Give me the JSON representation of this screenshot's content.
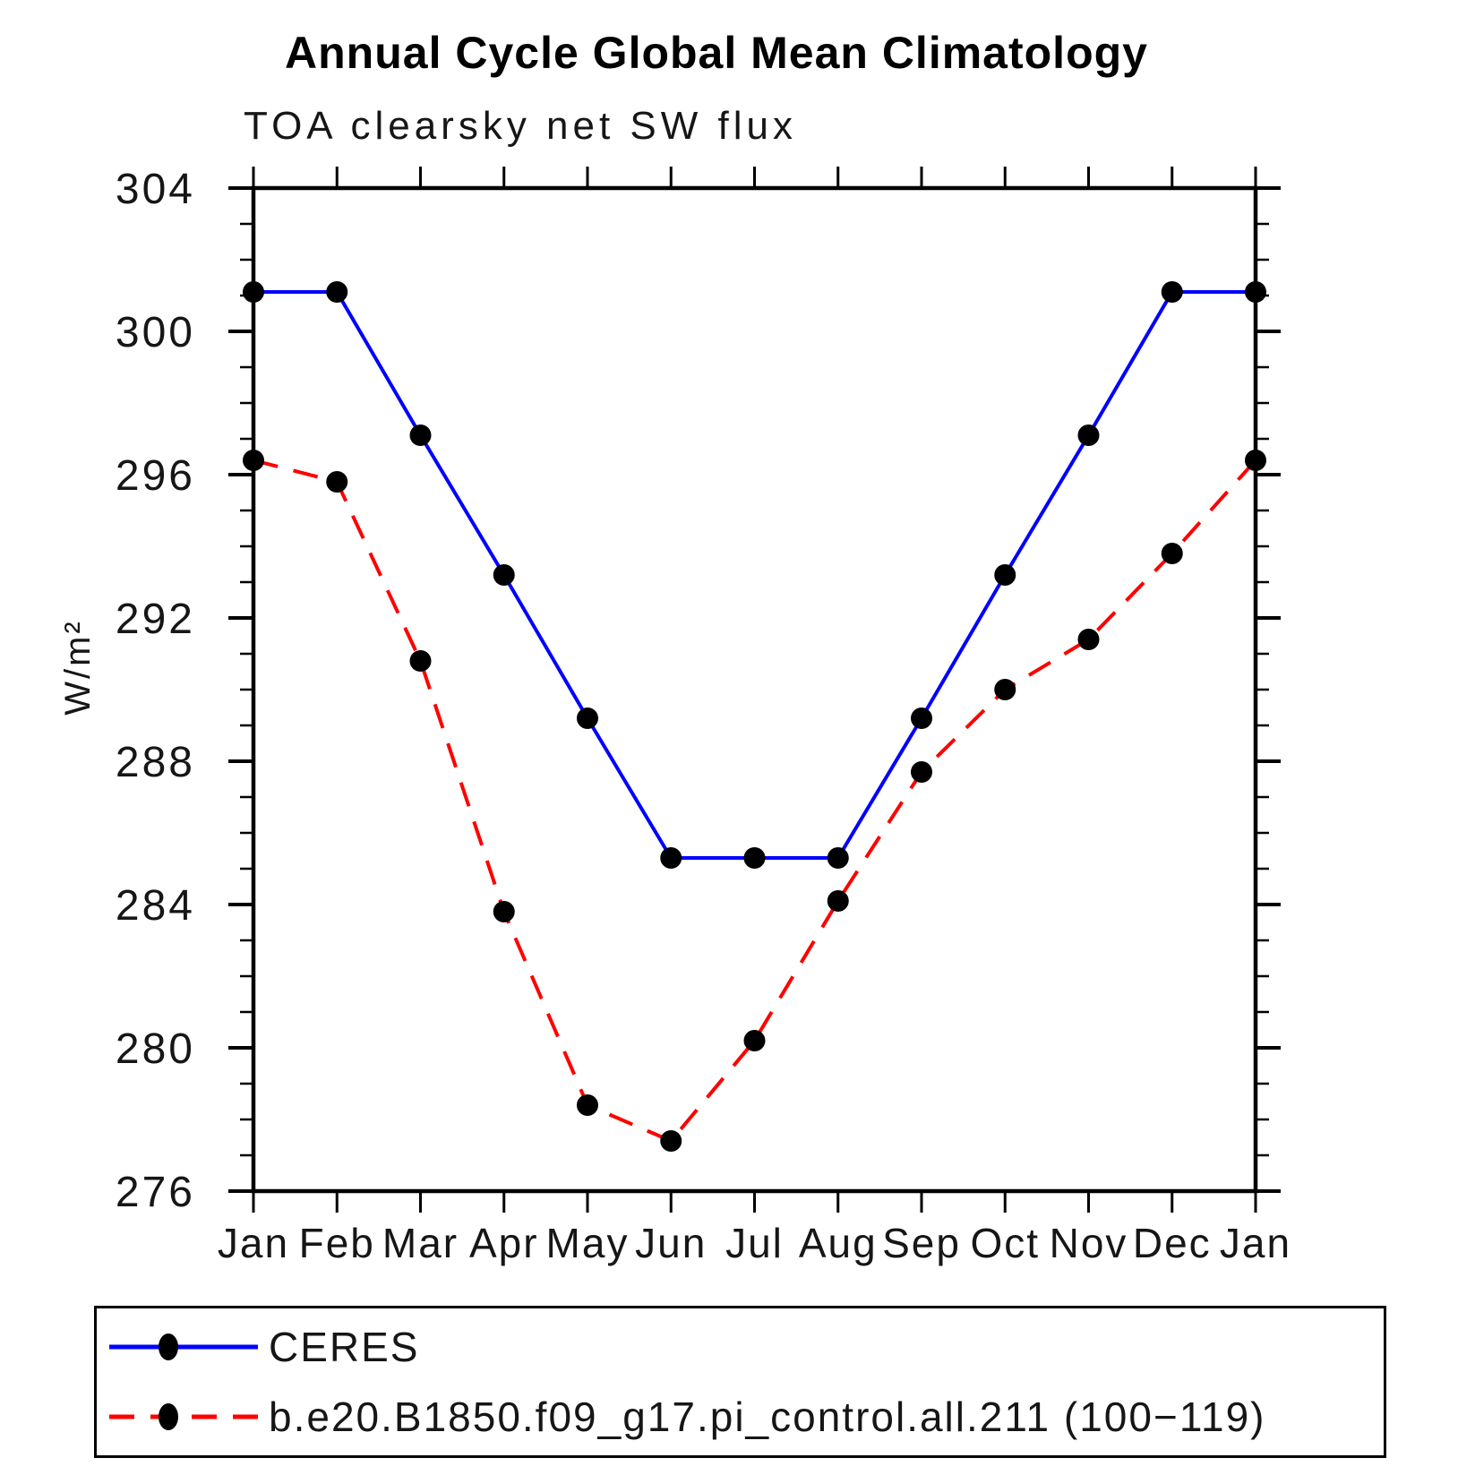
{
  "title": "Annual Cycle Global Mean Climatology",
  "subtitle": "TOA clearsky net SW flux",
  "chart_data": {
    "type": "line",
    "title": "Annual Cycle Global Mean Climatology",
    "subtitle": "TOA clearsky net SW flux",
    "ylabel": "W/m²",
    "ylim": [
      276,
      304
    ],
    "ytick_major_step": 4,
    "ytick_minor_step": 1,
    "grid": false,
    "legend_position": "bottom",
    "categories": [
      "Jan",
      "Feb",
      "Mar",
      "Apr",
      "May",
      "Jun",
      "Jul",
      "Aug",
      "Sep",
      "Oct",
      "Nov",
      "Dec",
      "Jan"
    ],
    "series": [
      {
        "name": "CERES",
        "color": "#0000ff",
        "line_style": "solid",
        "marker": "filled-circle",
        "marker_color": "#000000",
        "values": [
          301.1,
          301.1,
          297.1,
          293.2,
          289.2,
          285.3,
          285.3,
          285.3,
          289.2,
          293.2,
          297.1,
          301.1,
          301.1
        ]
      },
      {
        "name": "b.e20.B1850.f09_g17.pi_control.all.211 (100−119)",
        "color": "#ff0000",
        "line_style": "dashed",
        "marker": "filled-circle",
        "marker_color": "#000000",
        "values": [
          296.4,
          295.8,
          290.8,
          283.8,
          278.4,
          277.4,
          280.2,
          284.1,
          287.7,
          290.0,
          291.4,
          293.8,
          296.4
        ]
      }
    ]
  }
}
